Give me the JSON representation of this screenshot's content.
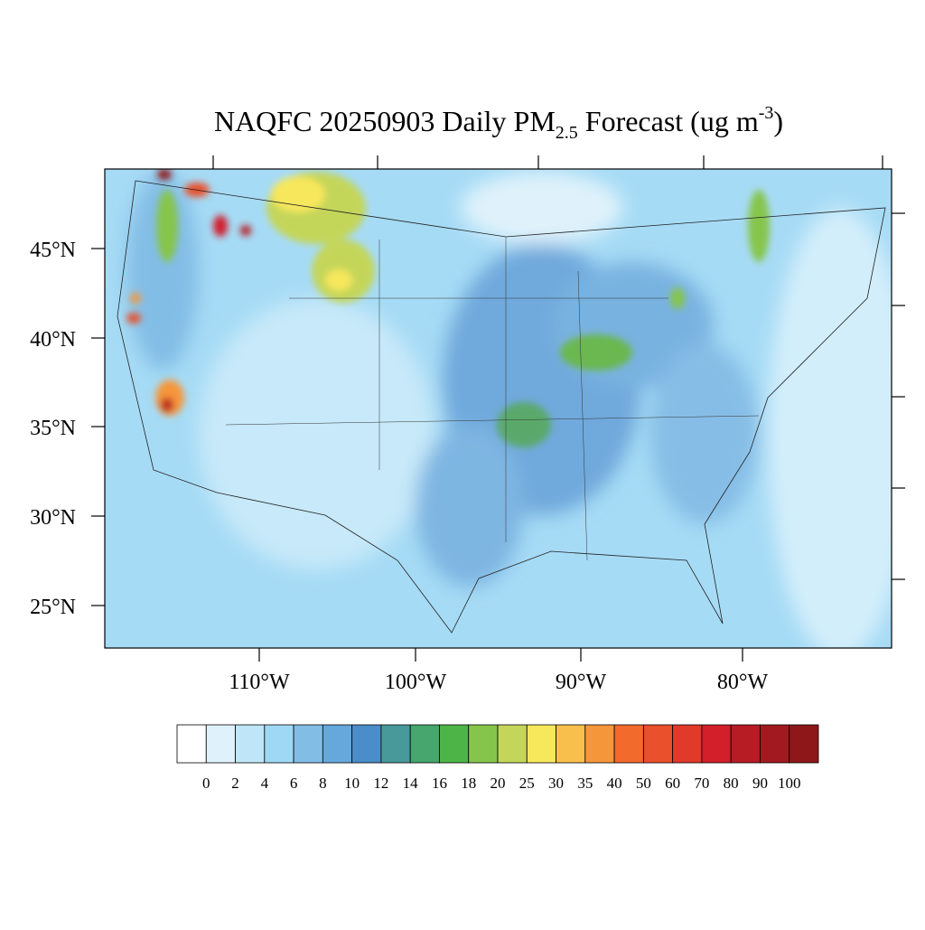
{
  "title": {
    "main": "NAQFC 20250903 Daily PM",
    "sub": "2.5",
    "rest": " Forecast (ug m",
    "sup": "-3",
    "close": ")"
  },
  "map": {
    "lat_labels": [
      "45°N",
      "40°N",
      "35°N",
      "30°N",
      "25°N"
    ],
    "lon_labels": [
      "110°W",
      "100°W",
      "90°W",
      "80°W"
    ]
  },
  "colorbar": {
    "levels": [
      0,
      2,
      4,
      6,
      8,
      10,
      12,
      14,
      16,
      18,
      20,
      25,
      30,
      35,
      40,
      50,
      60,
      70,
      80,
      90,
      100
    ],
    "colors": [
      "#ffffff",
      "#dff2fb",
      "#bfe6f8",
      "#9fd8f4",
      "#82bde6",
      "#66a8dc",
      "#4a8dc8",
      "#48999a",
      "#47a56e",
      "#4db548",
      "#86c54b",
      "#c4d65a",
      "#f7e75b",
      "#f8bf4c",
      "#f6963b",
      "#f26a2c",
      "#e9502b",
      "#df3a2a",
      "#d21f2a",
      "#b71b24",
      "#a21a1f",
      "#8e1719"
    ]
  }
}
